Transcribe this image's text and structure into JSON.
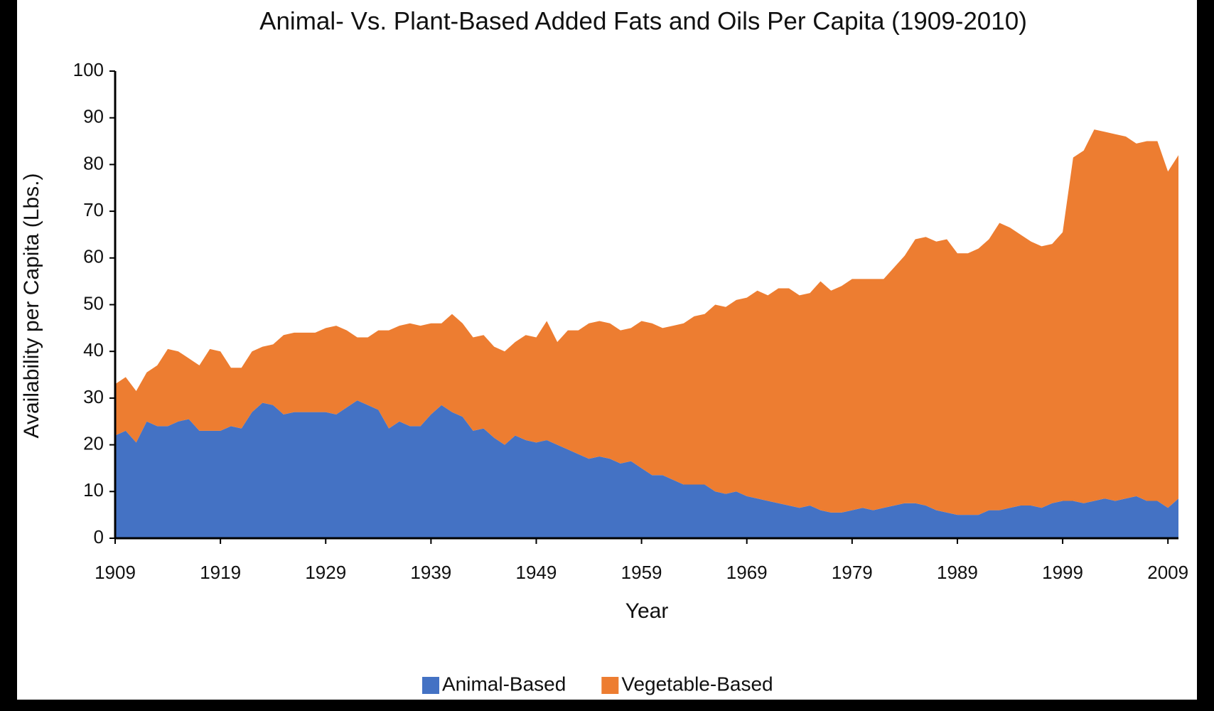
{
  "chart_data": {
    "type": "stacked_area",
    "title": "Animal- Vs. Plant-Based Added Fats and Oils Per Capita (1909-2010)",
    "x_label": "Year",
    "y_label": "Availability per Capita (Lbs.)",
    "x": [
      1909,
      1910,
      1911,
      1912,
      1913,
      1914,
      1915,
      1916,
      1917,
      1918,
      1919,
      1920,
      1921,
      1922,
      1923,
      1924,
      1925,
      1926,
      1927,
      1928,
      1929,
      1930,
      1931,
      1932,
      1933,
      1934,
      1935,
      1936,
      1937,
      1938,
      1939,
      1940,
      1941,
      1942,
      1943,
      1944,
      1945,
      1946,
      1947,
      1948,
      1949,
      1950,
      1951,
      1952,
      1953,
      1954,
      1955,
      1956,
      1957,
      1958,
      1959,
      1960,
      1961,
      1962,
      1963,
      1964,
      1965,
      1966,
      1967,
      1968,
      1969,
      1970,
      1971,
      1972,
      1973,
      1974,
      1975,
      1976,
      1977,
      1978,
      1979,
      1980,
      1981,
      1982,
      1983,
      1984,
      1985,
      1986,
      1987,
      1988,
      1989,
      1990,
      1991,
      1992,
      1993,
      1994,
      1995,
      1996,
      1997,
      1998,
      1999,
      2000,
      2001,
      2002,
      2003,
      2004,
      2005,
      2006,
      2007,
      2008,
      2009,
      2010
    ],
    "series": [
      {
        "name": "Animal-Based",
        "color": "#4472c4",
        "values": [
          22,
          23,
          20.5,
          25,
          24,
          24,
          25,
          25.5,
          23,
          23,
          23,
          24,
          23.5,
          27,
          29,
          28.5,
          26.5,
          27,
          27,
          27,
          27,
          26.5,
          28,
          29.5,
          28.5,
          27.5,
          23.5,
          25,
          24,
          24,
          26.5,
          28.5,
          27,
          26,
          23,
          23.5,
          21.5,
          20,
          22,
          21,
          20.5,
          21,
          20,
          19,
          18,
          17,
          17.5,
          17,
          16,
          16.5,
          15,
          13.5,
          13.5,
          12.5,
          11.5,
          11.5,
          11.5,
          10,
          9.5,
          10,
          9,
          8.5,
          8,
          7.5,
          7,
          6.5,
          7,
          6,
          5.5,
          5.5,
          6,
          6.5,
          6,
          6.5,
          7,
          7.5,
          7.5,
          7,
          6,
          5.5,
          5,
          5,
          5,
          6,
          6,
          6.5,
          7,
          7,
          6.5,
          7.5,
          8,
          8,
          7.5,
          8,
          8.5,
          8,
          8.5,
          9,
          8,
          8,
          6.5,
          8.5
        ]
      },
      {
        "name": "Vegetable-Based",
        "color": "#ed7d31",
        "values": [
          11,
          11.5,
          11,
          10.5,
          13,
          16.5,
          15,
          13,
          14,
          17.5,
          17,
          12.5,
          13,
          13,
          12,
          13,
          17,
          17,
          17,
          17,
          18,
          19,
          16.5,
          13.5,
          14.5,
          17,
          21,
          20.5,
          22,
          21.5,
          19.5,
          17.5,
          21,
          20,
          20,
          20,
          19.5,
          20,
          20,
          22.5,
          22.5,
          25.5,
          22,
          25.5,
          26.5,
          29,
          29,
          29,
          28.5,
          28.5,
          31.5,
          32.5,
          31.5,
          33,
          34.5,
          36,
          36.5,
          40,
          40,
          41,
          42.5,
          44.5,
          44,
          46,
          46.5,
          45.5,
          45.5,
          49,
          47.5,
          48.5,
          49.5,
          49,
          49.5,
          49,
          51,
          53,
          56.5,
          57.5,
          57.5,
          58.5,
          56,
          56,
          57,
          58,
          61.5,
          60,
          58,
          56.5,
          56,
          55.5,
          57.5,
          73.5,
          75.5,
          79.5,
          78.5,
          78.5,
          77.5,
          75.5,
          77,
          77,
          72,
          73.5
        ]
      }
    ],
    "xlim": [
      1909,
      2010
    ],
    "xticks": [
      1909,
      1919,
      1929,
      1939,
      1949,
      1959,
      1969,
      1979,
      1989,
      1999,
      2009
    ],
    "ylim": [
      0,
      100
    ],
    "yticks": [
      0,
      10,
      20,
      30,
      40,
      50,
      60,
      70,
      80,
      90,
      100
    ],
    "legend": "bottom"
  }
}
